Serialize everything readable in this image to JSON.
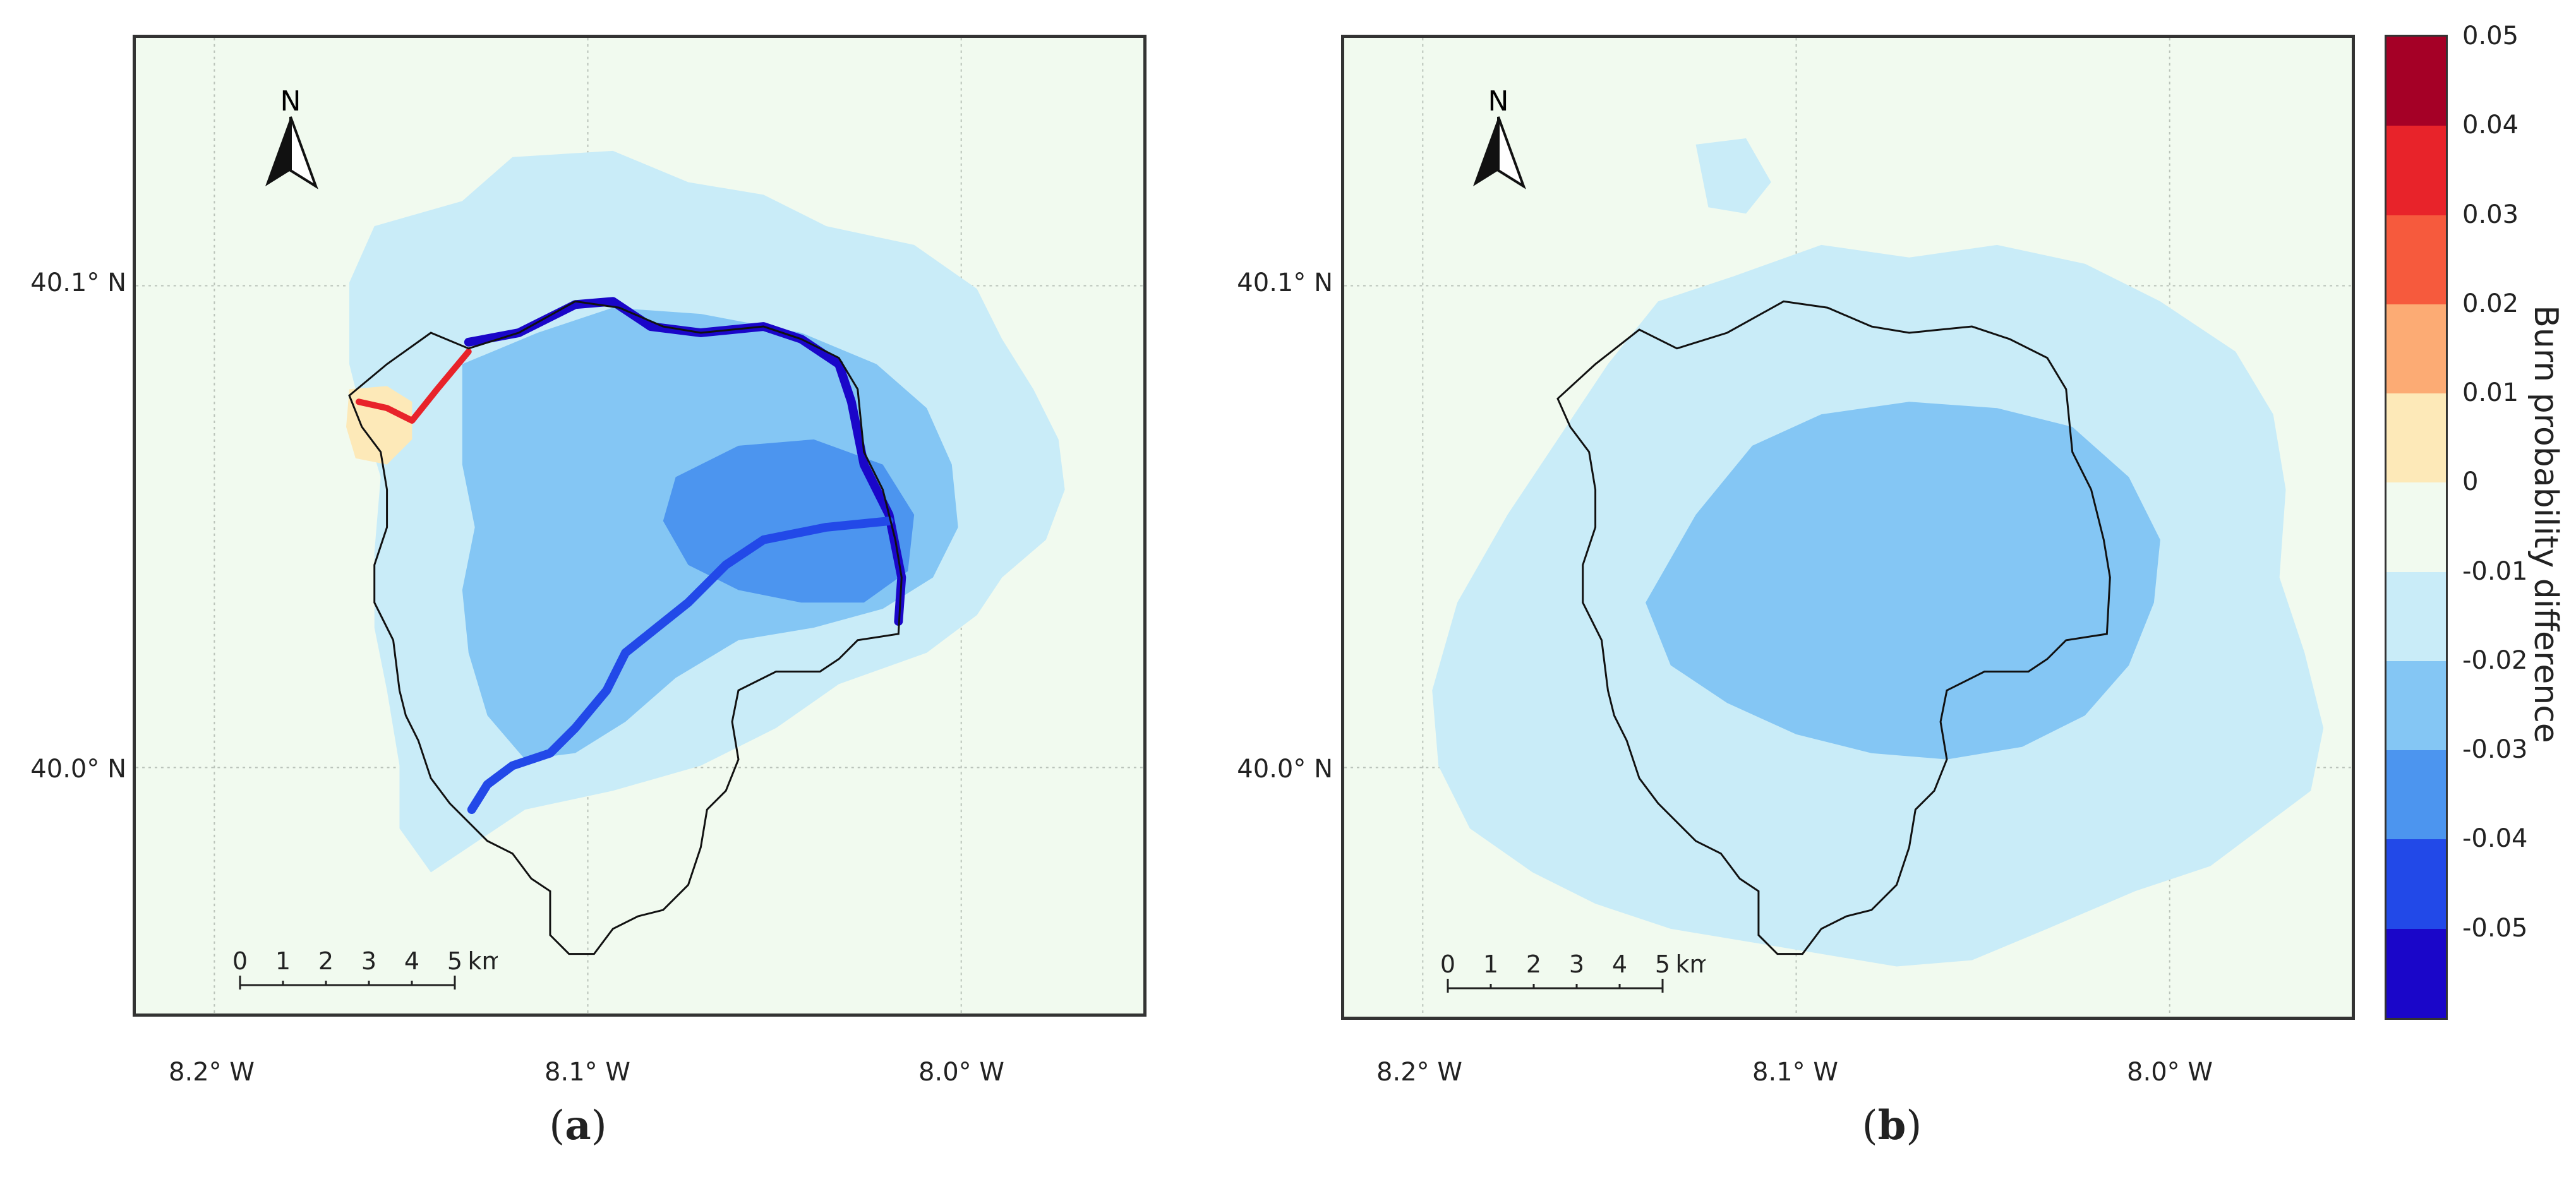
{
  "panels": [
    {
      "id": "a",
      "caption_open": "(",
      "caption_letter": "a",
      "caption_close": ")",
      "lat_labels": [
        "40.1° N",
        "40.0° N"
      ],
      "lon_labels": [
        "8.2° W",
        "8.1° W",
        "8.0° W"
      ],
      "north_label": "N"
    },
    {
      "id": "b",
      "caption_open": "(",
      "caption_letter": "b",
      "caption_close": ")",
      "lat_labels": [
        "40.1° N",
        "40.0° N"
      ],
      "lon_labels": [
        "8.2° W",
        "8.1° W",
        "8.0° W"
      ],
      "north_label": "N"
    }
  ],
  "scalebar": {
    "ticks": [
      "0",
      "1",
      "2",
      "3",
      "4",
      "5"
    ],
    "unit": "km"
  },
  "colorbar": {
    "title": "Burn probability difference",
    "ticks": [
      "0.05",
      "0.04",
      "0.03",
      "0.02",
      "0.01",
      "0",
      "-0.01",
      "-0.02",
      "-0.03",
      "-0.04",
      "-0.05"
    ],
    "colors": [
      "#a50026",
      "#e8232a",
      "#f65a3d",
      "#fcab74",
      "#fde9b8",
      "#f1faef",
      "#c9ecf8",
      "#84c6f4",
      "#4c95ef",
      "#2249e8",
      "#1a06c9"
    ]
  }
}
